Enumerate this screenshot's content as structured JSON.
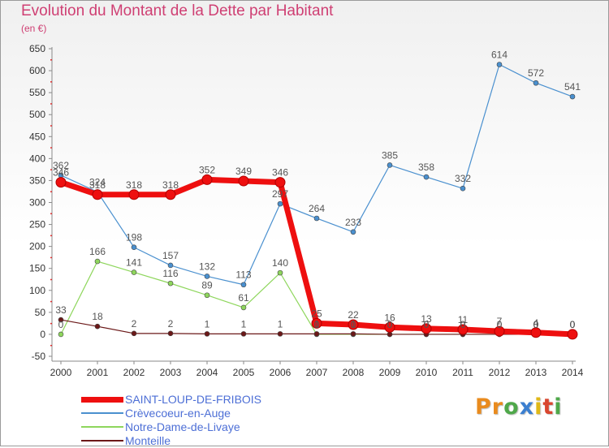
{
  "header": {
    "title": "Evolution du Montant de la Dette par Habitant",
    "subtitle": "(en €)"
  },
  "colors": {
    "title": "#cf3f73",
    "axis": "#8a8a8a",
    "tick_label": "#333333",
    "data_label": "#555555",
    "legend_text": "#4d6fd6"
  },
  "logo": {
    "text": "Proxiti",
    "letters": [
      {
        "ch": "P",
        "color": "#e98b1e"
      },
      {
        "ch": "r",
        "color": "#e98b1e"
      },
      {
        "ch": "o",
        "color": "#4fa84a"
      },
      {
        "ch": "x",
        "color": "#3b7fd0"
      },
      {
        "ch": "i",
        "color": "#e0b817"
      },
      {
        "ch": "t",
        "color": "#d9462f"
      },
      {
        "ch": "i",
        "color": "#4fa84a"
      }
    ]
  },
  "chart_data": {
    "type": "line",
    "title": "Evolution du Montant de la Dette par Habitant",
    "subtitle": "(en €)",
    "xlabel": "",
    "ylabel": "",
    "x": [
      "2000",
      "2001",
      "2002",
      "2003",
      "2004",
      "2005",
      "2006",
      "2007",
      "2008",
      "2009",
      "2010",
      "2011",
      "2012",
      "2013",
      "2014"
    ],
    "ylim": [
      -50,
      650
    ],
    "yticks": [
      -50,
      0,
      50,
      100,
      150,
      200,
      250,
      300,
      350,
      400,
      450,
      500,
      550,
      600,
      650
    ],
    "grid": false,
    "legend_position": "bottom-left",
    "series": [
      {
        "name": "Crèvecoeur-en-Auge",
        "color": "#4a90cf",
        "line_width": 1.2,
        "values": [
          362,
          324,
          198,
          157,
          132,
          113,
          297,
          264,
          233,
          385,
          358,
          332,
          614,
          572,
          541
        ],
        "labels": [
          "362",
          "324",
          "198",
          "157",
          "132",
          "113",
          "297",
          "264",
          "233",
          "385",
          "358",
          "332",
          "614",
          "572",
          "541"
        ]
      },
      {
        "name": "Notre-Dame-de-Livaye",
        "color": "#8ed65c",
        "line_width": 1.2,
        "values": [
          0,
          166,
          141,
          116,
          89,
          61,
          140,
          0,
          0,
          0,
          0,
          0,
          0,
          0,
          0
        ],
        "labels": [
          "0",
          "166",
          "141",
          "116",
          "89",
          "61",
          "140",
          "0",
          "0",
          "0",
          "0",
          "0",
          "0",
          "0",
          "0"
        ]
      },
      {
        "name": "Monteille",
        "color": "#6b1818",
        "line_width": 1.2,
        "values": [
          33,
          18,
          2,
          2,
          1,
          1,
          1,
          1,
          1,
          0,
          0,
          0,
          0,
          0,
          0
        ],
        "labels": [
          "33",
          "18",
          "2",
          "2",
          "1",
          "1",
          "1",
          "1",
          "1",
          "0",
          "0",
          "0",
          "0",
          "0",
          "0"
        ]
      },
      {
        "name": "SAINT-LOUP-DE-FRIBOIS",
        "color": "#ee0f0f",
        "line_width": 7,
        "values": [
          346,
          318,
          318,
          318,
          352,
          349,
          346,
          25,
          22,
          16,
          13,
          11,
          7,
          4,
          0
        ],
        "labels": [
          "346",
          "318",
          "318",
          "318",
          "352",
          "349",
          "346",
          "25",
          "22",
          "16",
          "13",
          "11",
          "7",
          "4",
          "0"
        ]
      }
    ]
  },
  "legend": {
    "items": [
      {
        "label": "SAINT-LOUP-DE-FRIBOIS",
        "color": "#ee0f0f",
        "thick": true
      },
      {
        "label": "Crèvecoeur-en-Auge",
        "color": "#4a90cf",
        "thick": false
      },
      {
        "label": "Notre-Dame-de-Livaye",
        "color": "#8ed65c",
        "thick": false
      },
      {
        "label": "Monteille",
        "color": "#6b1818",
        "thick": false
      }
    ]
  }
}
